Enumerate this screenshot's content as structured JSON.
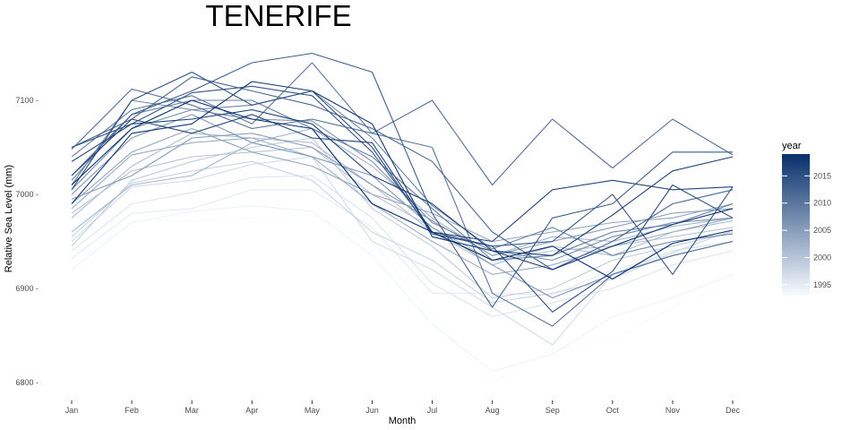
{
  "chart_data": {
    "type": "line",
    "title": "TENERIFE",
    "xlabel": "Month",
    "ylabel": "Relative Sea Level (mm)",
    "categories": [
      "Jan",
      "Feb",
      "Mar",
      "Apr",
      "May",
      "Jun",
      "Jul",
      "Aug",
      "Sep",
      "Oct",
      "Nov",
      "Dec"
    ],
    "ylim": [
      6790,
      7155
    ],
    "yticks": [
      6800,
      6900,
      7000,
      7100
    ],
    "ytick_labels": [
      "6800 -",
      "6900 -",
      "7000 -",
      "7100 -"
    ],
    "grid": false,
    "legend": {
      "title": "year",
      "placement": "right",
      "min": 1993,
      "max": 2019,
      "ticks": [
        1995,
        2000,
        2005,
        2010,
        2015
      ],
      "tick_labels": [
        "1995",
        "2000",
        "2005",
        "2010",
        "2015"
      ],
      "color_low": "#f7fbff",
      "color_high": "#08306b"
    },
    "series": [
      {
        "year": 1993,
        "values": [
          6925,
          6972,
          6972,
          6975,
          6978,
          6950,
          6870,
          6800,
          6835,
          6845,
          6880,
          6905
        ]
      },
      {
        "year": 1994,
        "values": [
          6920,
          6970,
          6982,
          6988,
          6982,
          6935,
          6862,
          6812,
          6830,
          6870,
          6890,
          6915
        ]
      },
      {
        "year": 1995,
        "values": [
          6932,
          6980,
          6985,
          7005,
          7005,
          6965,
          6895,
          6895,
          6893,
          6920,
          6935,
          6950
        ]
      },
      {
        "year": 1996,
        "values": [
          6940,
          6990,
          7002,
          7018,
          7020,
          6975,
          6905,
          6870,
          6885,
          6900,
          6925,
          6940
        ]
      },
      {
        "year": 1997,
        "values": [
          6950,
          7008,
          7015,
          7032,
          7040,
          6950,
          6920,
          6880,
          6840,
          6915,
          6940,
          6950
        ]
      },
      {
        "year": 1998,
        "values": [
          6955,
          7012,
          7025,
          7035,
          7015,
          6960,
          6930,
          6885,
          6895,
          6910,
          6938,
          6962
        ]
      },
      {
        "year": 1999,
        "values": [
          6945,
          7015,
          7035,
          7050,
          7060,
          6985,
          6945,
          6890,
          6900,
          6930,
          6945,
          6960
        ]
      },
      {
        "year": 2000,
        "values": [
          6980,
          7025,
          7040,
          7045,
          7050,
          7000,
          6965,
          6930,
          6940,
          6945,
          6955,
          6965
        ]
      },
      {
        "year": 2001,
        "values": [
          6975,
          7030,
          7065,
          7060,
          7055,
          7010,
          6960,
          6925,
          6945,
          6935,
          6960,
          6972
        ]
      },
      {
        "year": 2002,
        "values": [
          6960,
          7010,
          7020,
          7055,
          7070,
          7030,
          6975,
          6935,
          6955,
          6950,
          6966,
          6975
        ]
      },
      {
        "year": 2003,
        "values": [
          6985,
          7042,
          7055,
          7060,
          7040,
          6990,
          6950,
          6915,
          6925,
          6945,
          6960,
          6975
        ]
      },
      {
        "year": 2004,
        "values": [
          6990,
          7045,
          7070,
          7045,
          7030,
          7000,
          6980,
          6950,
          6960,
          6970,
          6975,
          6990
        ]
      },
      {
        "year": 2005,
        "values": [
          6995,
          7020,
          7060,
          7065,
          7050,
          7010,
          6972,
          6935,
          6950,
          6965,
          6980,
          6985
        ]
      },
      {
        "year": 2006,
        "values": [
          7000,
          7060,
          7085,
          7055,
          7040,
          7020,
          6965,
          6925,
          6890,
          6915,
          6935,
          6950
        ]
      },
      {
        "year": 2007,
        "values": [
          7005,
          7070,
          7090,
          7080,
          7078,
          7035,
          6970,
          6940,
          6930,
          6955,
          6970,
          6975
        ]
      },
      {
        "year": 2008,
        "values": [
          7010,
          7100,
          7090,
          7095,
          7110,
          7060,
          6988,
          6942,
          6965,
          6935,
          6950,
          6958
        ]
      },
      {
        "year": 2009,
        "values": [
          7015,
          7085,
          7100,
          7100,
          7070,
          7040,
          6985,
          6930,
          6935,
          6960,
          6968,
          6990
        ]
      },
      {
        "year": 2010,
        "values": [
          7040,
          7090,
          7105,
          7075,
          7140,
          7065,
          7050,
          6895,
          6860,
          6915,
          6935,
          6950
        ]
      },
      {
        "year": 2011,
        "values": [
          7048,
          7112,
          7095,
          7070,
          7080,
          7065,
          7100,
          7010,
          7080,
          7028,
          7080,
          7042
        ]
      },
      {
        "year": 2012,
        "values": [
          7050,
          7080,
          7125,
          7110,
          7095,
          7070,
          7035,
          6960,
          6920,
          6950,
          6990,
          7005
        ]
      },
      {
        "year": 2013,
        "values": [
          7020,
          7085,
          7110,
          7140,
          7150,
          7130,
          6980,
          6880,
          6975,
          6990,
          7045,
          7045
        ]
      },
      {
        "year": 2014,
        "values": [
          7050,
          7075,
          7108,
          7115,
          7105,
          7045,
          6960,
          6945,
          6950,
          7000,
          6915,
          7008
        ]
      },
      {
        "year": 2015,
        "values": [
          7005,
          7100,
          7130,
          7095,
          7110,
          7050,
          6958,
          6945,
          6875,
          6918,
          7010,
          6975
        ]
      },
      {
        "year": 2016,
        "values": [
          7020,
          7080,
          7065,
          7085,
          7060,
          7055,
          6960,
          6950,
          7005,
          7015,
          7005,
          7008
        ]
      },
      {
        "year": 2017,
        "values": [
          7035,
          7075,
          7080,
          7090,
          7075,
          7020,
          6990,
          6940,
          6935,
          6978,
          7025,
          7040
        ]
      },
      {
        "year": 2018,
        "values": [
          6990,
          7065,
          7075,
          7120,
          7110,
          7075,
          6955,
          6940,
          6920,
          6945,
          6968,
          6985
        ]
      },
      {
        "year": 2019,
        "values": [
          7010,
          7070,
          7100,
          7080,
          7070,
          6990,
          6960,
          6930,
          6945,
          6910,
          6948,
          6962
        ]
      }
    ]
  }
}
